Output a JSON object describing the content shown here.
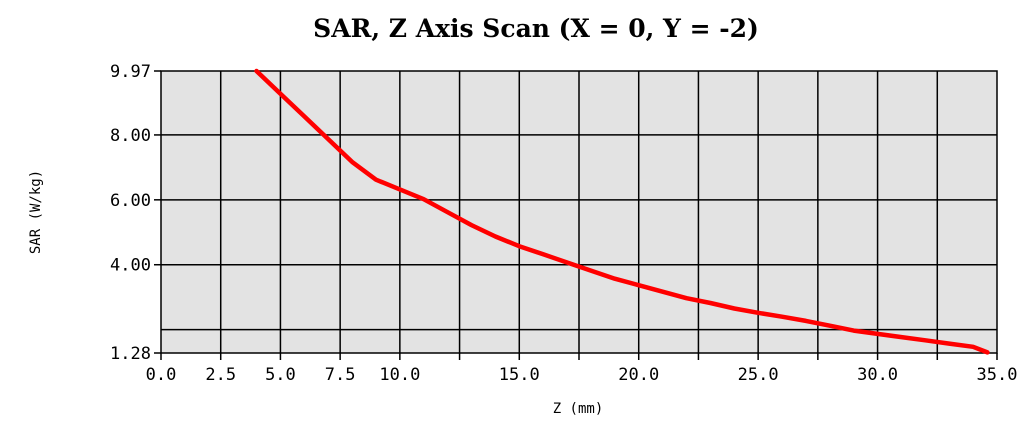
{
  "chart_data": {
    "type": "line",
    "title": "SAR, Z Axis Scan (X = 0, Y = -2)",
    "xlabel": "Z (mm)",
    "ylabel": "SAR (W/kg)",
    "xlim": [
      0,
      35
    ],
    "ylim": [
      1.28,
      9.97
    ],
    "x_ticks": [
      0,
      2.5,
      5,
      7.5,
      10,
      12.5,
      15,
      17.5,
      20,
      22.5,
      25,
      27.5,
      30,
      32.5,
      35
    ],
    "x_tick_labels": [
      "0.0",
      "2.5",
      "5.0",
      "7.5",
      "10.0",
      "",
      "15.0",
      "",
      "20.0",
      "",
      "25.0",
      "",
      "30.0",
      "",
      "35.0"
    ],
    "y_ticks": [
      1.28,
      4.0,
      6.0,
      8.0,
      9.97
    ],
    "y_tick_labels": [
      "1.28",
      "4.00",
      "6.00",
      "8.00",
      "9.97"
    ],
    "y_gridlines": [
      2.0,
      4.0,
      6.0,
      8.0
    ],
    "grid": true,
    "background": "#e3e3e3",
    "line_color": "#ff0000",
    "series": [
      {
        "x": [
          4.0,
          5.0,
          6.0,
          7.0,
          8.0,
          9.0,
          10.0,
          11.0,
          12.0,
          13.0,
          14.0,
          15.0,
          16.0,
          17.0,
          18.0,
          19.0,
          20.0,
          21.0,
          22.0,
          23.0,
          24.0,
          25.0,
          26.0,
          27.0,
          28.0,
          29.0,
          30.0,
          31.0,
          32.0,
          33.0,
          34.0,
          34.6
        ],
        "values": [
          9.97,
          9.27,
          8.57,
          7.87,
          7.17,
          6.62,
          6.32,
          6.02,
          5.62,
          5.22,
          4.87,
          4.57,
          4.32,
          4.07,
          3.82,
          3.57,
          3.37,
          3.17,
          2.97,
          2.82,
          2.65,
          2.52,
          2.4,
          2.27,
          2.12,
          1.97,
          1.87,
          1.77,
          1.67,
          1.57,
          1.47,
          1.3
        ]
      }
    ]
  }
}
